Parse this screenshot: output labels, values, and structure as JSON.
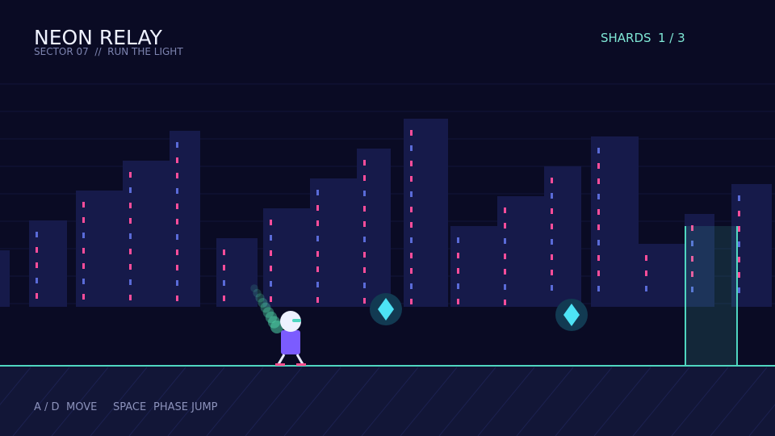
{
  "header": {
    "title": "NEON RELAY",
    "subtitle": "SECTOR 07  //  RUN THE LIGHT"
  },
  "hud": {
    "label": "SHARDS",
    "value": "1 / 3"
  },
  "controls": [
    {
      "key": "A / D",
      "action": "MOVE"
    },
    {
      "key": "SPACE",
      "action": "PHASE JUMP"
    }
  ]
}
